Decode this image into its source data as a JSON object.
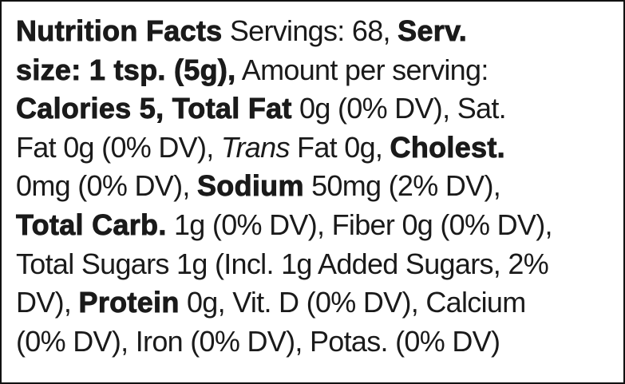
{
  "lines": [
    [
      {
        "text": "Nutrition Facts",
        "style": "bold"
      },
      {
        "text": " Servings: 68, ",
        "style": "normal"
      },
      {
        "text": "Serv.",
        "style": "bold"
      }
    ],
    [
      {
        "text": "size: 1 tsp. (5g),",
        "style": "bold"
      },
      {
        "text": " Amount per serving:",
        "style": "normal"
      }
    ],
    [
      {
        "text": "Calories 5, Total Fat",
        "style": "bold"
      },
      {
        "text": " 0g (0% DV), Sat.",
        "style": "normal"
      }
    ],
    [
      {
        "text": "Fat 0g (0% DV), ",
        "style": "normal"
      },
      {
        "text": "Trans",
        "style": "italic"
      },
      {
        "text": " Fat 0g, ",
        "style": "normal"
      },
      {
        "text": "Cholest.",
        "style": "bold"
      }
    ],
    [
      {
        "text": "0mg (0% DV), ",
        "style": "normal"
      },
      {
        "text": "Sodium",
        "style": "bold"
      },
      {
        "text": " 50mg (2% DV),",
        "style": "normal"
      }
    ],
    [
      {
        "text": "Total Carb.",
        "style": "bold"
      },
      {
        "text": " 1g (0% DV), Fiber 0g (0% DV),",
        "style": "normal"
      }
    ],
    [
      {
        "text": "Total Sugars 1g (Incl. 1g Added Sugars, 2%",
        "style": "normal"
      }
    ],
    [
      {
        "text": "DV), ",
        "style": "normal"
      },
      {
        "text": "Protein",
        "style": "bold"
      },
      {
        "text": " 0g, Vit. D (0% DV), Calcium",
        "style": "normal"
      }
    ],
    [
      {
        "text": "(0% DV), Iron (0% DV), Potas. (0% DV)",
        "style": "normal"
      }
    ]
  ]
}
